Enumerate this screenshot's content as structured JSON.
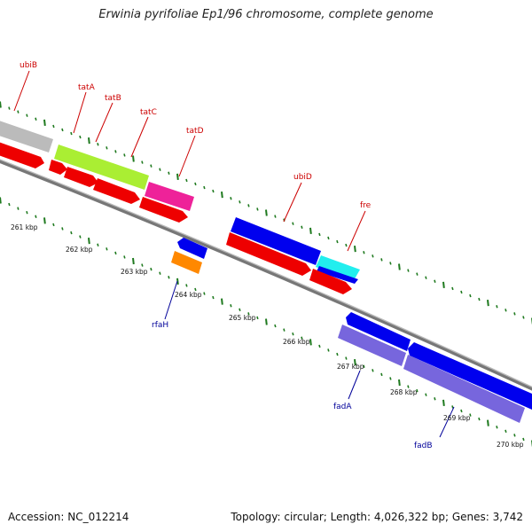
{
  "title": "Erwinia pyrifoliae Ep1/96 chromosome, complete genome",
  "footer": {
    "accession": "Accession: NC_012214",
    "summary": "Topology: circular; Length: 4,026,322 bp; Genes: 3,742"
  },
  "colors": {
    "backbone": "#888888",
    "tick": "#1f7a1f",
    "forward_label": "#cc0000",
    "reverse_label": "#000099"
  },
  "scale_labels": [
    "261 kbp",
    "262 kbp",
    "263 kbp",
    "264 kbp",
    "265 kbp",
    "266 kbp",
    "267 kbp",
    "268 kbp",
    "269 kbp",
    "270 kbp"
  ],
  "gene_labels_top": [
    "ubiB",
    "tatA",
    "tatB",
    "tatC",
    "tatD",
    "ubiD",
    "fre"
  ],
  "gene_labels_bottom": [
    "rfaH",
    "fadA",
    "fadB"
  ],
  "features": [
    {
      "name": "ubiB",
      "color": "#bbbbbb"
    },
    {
      "name": "tatA",
      "color": "#aaee33"
    },
    {
      "name": "tatC",
      "color": "#ee2299"
    },
    {
      "name": "ubiD",
      "color": "#0000ee"
    },
    {
      "name": "fre",
      "color": "#22eeee"
    },
    {
      "name": "rfaH",
      "color": "#ff8800"
    },
    {
      "name": "fadA",
      "color": "#7766dd"
    },
    {
      "name": "fadB",
      "color": "#7766dd"
    },
    {
      "name": "cds",
      "color": "#ee0000"
    }
  ]
}
